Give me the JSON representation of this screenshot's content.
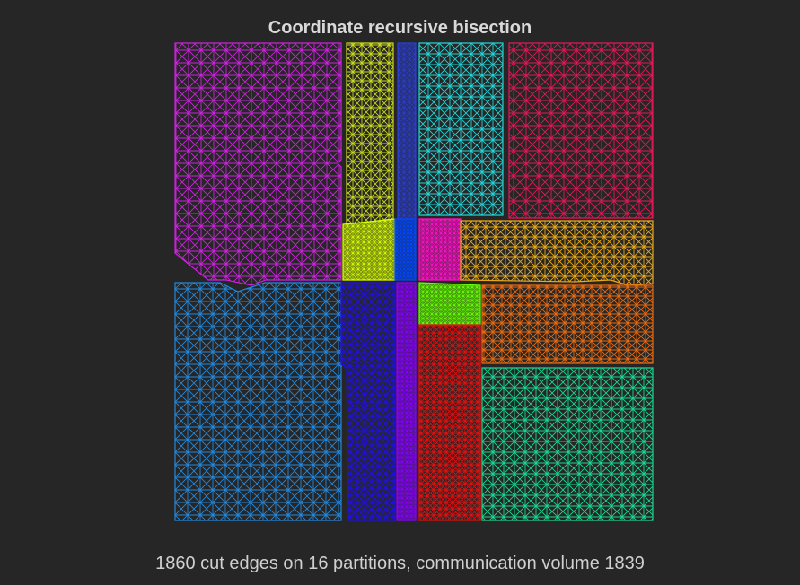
{
  "figure": {
    "title": "Coordinate recursive bisection",
    "caption": "1860 cut edges on 16 partitions, communication volume 1839",
    "background": "#262626"
  },
  "partitions": [
    {
      "id": "p1",
      "color": "#cc22dd"
    },
    {
      "id": "p2",
      "color": "#c8d81e"
    },
    {
      "id": "p3",
      "color": "#2a3fd0"
    },
    {
      "id": "p4",
      "color": "#22d4d8"
    },
    {
      "id": "p5",
      "color": "#e01858"
    },
    {
      "id": "p6",
      "color": "#d8ff00"
    },
    {
      "id": "p7",
      "color": "#0048ff"
    },
    {
      "id": "p8",
      "color": "#ff10c8"
    },
    {
      "id": "p9",
      "color": "#e8a818"
    },
    {
      "id": "p10",
      "color": "#2288dd"
    },
    {
      "id": "p11",
      "color": "#2010e0"
    },
    {
      "id": "p12",
      "color": "#8800ff"
    },
    {
      "id": "p13",
      "color": "#66ff00"
    },
    {
      "id": "p14",
      "color": "#e86a10"
    },
    {
      "id": "p15",
      "color": "#e01010"
    },
    {
      "id": "p16",
      "color": "#18d890"
    }
  ]
}
